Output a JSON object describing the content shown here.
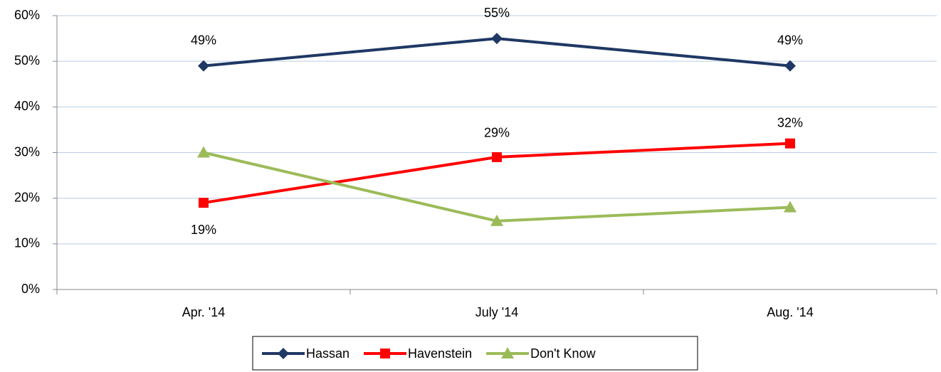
{
  "chart_data": {
    "type": "line",
    "categories": [
      "Apr. '14",
      "July '14",
      "Aug. '14"
    ],
    "series": [
      {
        "name": "Hassan",
        "color": "#1f3864",
        "marker": "diamond",
        "values": [
          49,
          55,
          49
        ],
        "value_labels": [
          "49%",
          "55%",
          "49%"
        ]
      },
      {
        "name": "Havenstein",
        "color": "#ff0000",
        "marker": "square",
        "values": [
          19,
          29,
          32
        ],
        "value_labels": [
          "19%",
          "29%",
          "32%"
        ]
      },
      {
        "name": "Don't Know",
        "color": "#9bbb59",
        "marker": "triangle",
        "values": [
          30,
          15,
          18
        ]
      }
    ],
    "ylim": [
      0,
      60
    ],
    "yticks": [
      {
        "value": 0,
        "label": "0%"
      },
      {
        "value": 10,
        "label": "10%"
      },
      {
        "value": 20,
        "label": "20%"
      },
      {
        "value": 30,
        "label": "30%"
      },
      {
        "value": 40,
        "label": "40%"
      },
      {
        "value": 50,
        "label": "50%"
      },
      {
        "value": 60,
        "label": "60%"
      }
    ],
    "grid": true,
    "legend": "bottom"
  }
}
